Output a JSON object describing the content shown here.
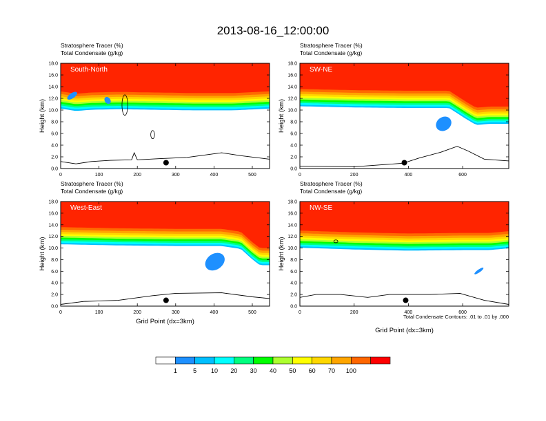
{
  "chart_data": {
    "type": "heatmap",
    "title": "2013-08-16_12:00:00",
    "panel_header": {
      "line1_name": "Stratosphere Tracer",
      "line1_unit": "(%)",
      "line2_name": "Total Condensate",
      "line2_unit": "(g/kg)"
    },
    "ylabel": "Height (km)",
    "xlabel": "Grid Point (dx=3km)",
    "yticks": [
      "0.0",
      "2.0",
      "4.0",
      "6.0",
      "8.0",
      "10.0",
      "12.0",
      "14.0",
      "16.0",
      "18.0"
    ],
    "ylim": [
      0,
      18
    ],
    "panels": [
      {
        "name": "South-North",
        "xlim": [
          0,
          545
        ],
        "xticks": [
          "0",
          "100",
          "200",
          "300",
          "400",
          "500"
        ],
        "tropopause_km": [
          [
            0,
            13.2
          ],
          [
            40,
            12.8
          ],
          [
            80,
            13.0
          ],
          [
            150,
            13.1
          ],
          [
            250,
            13.0
          ],
          [
            350,
            12.9
          ],
          [
            450,
            12.9
          ],
          [
            545,
            13.2
          ]
        ],
        "condensate_blobs": [
          {
            "x": [
              15,
              45
            ],
            "y": [
              12.0,
              12.9
            ]
          },
          {
            "x": [
              115,
              130
            ],
            "y": [
              11.0,
              12.3
            ]
          }
        ],
        "contour_loops": [
          {
            "x": [
              160,
              175
            ],
            "y": [
              9.1,
              12.6
            ]
          },
          {
            "x": [
              235,
              245
            ],
            "y": [
              5.1,
              6.5
            ]
          }
        ],
        "terrain_km": [
          [
            0,
            1.2
          ],
          [
            40,
            0.8
          ],
          [
            80,
            1.2
          ],
          [
            130,
            1.4
          ],
          [
            185,
            1.5
          ],
          [
            192,
            2.7
          ],
          [
            200,
            1.5
          ],
          [
            260,
            1.7
          ],
          [
            330,
            1.9
          ],
          [
            420,
            2.7
          ],
          [
            470,
            2.2
          ],
          [
            545,
            1.6
          ]
        ],
        "marker": {
          "x": 275,
          "y": 1.0
        }
      },
      {
        "name": "SW-NE",
        "xlim": [
          0,
          770
        ],
        "xticks": [
          "0",
          "200",
          "400",
          "600"
        ],
        "tropopause_km": [
          [
            0,
            13.6
          ],
          [
            200,
            13.4
          ],
          [
            400,
            13.3
          ],
          [
            550,
            13.3
          ],
          [
            610,
            11.5
          ],
          [
            650,
            10.4
          ],
          [
            700,
            10.6
          ],
          [
            770,
            10.6
          ]
        ],
        "condensate_blobs": [
          {
            "x": [
              500,
              560
            ],
            "y": [
              6.5,
              8.8
            ]
          }
        ],
        "contour_loops": [],
        "terrain_km": [
          [
            0,
            0.4
          ],
          [
            200,
            0.3
          ],
          [
            380,
            0.9
          ],
          [
            440,
            1.8
          ],
          [
            520,
            2.8
          ],
          [
            580,
            3.8
          ],
          [
            620,
            3.0
          ],
          [
            680,
            1.6
          ],
          [
            770,
            1.3
          ]
        ],
        "marker": {
          "x": 385,
          "y": 1.0
        }
      },
      {
        "name": "West-East",
        "xlim": [
          0,
          545
        ],
        "xticks": [
          "0",
          "100",
          "200",
          "300",
          "400",
          "500"
        ],
        "tropopause_km": [
          [
            0,
            13.6
          ],
          [
            150,
            13.4
          ],
          [
            300,
            13.3
          ],
          [
            420,
            13.3
          ],
          [
            470,
            12.8
          ],
          [
            500,
            11.0
          ],
          [
            520,
            10.0
          ],
          [
            545,
            10.0
          ]
        ],
        "condensate_blobs": [
          {
            "x": [
              375,
              430
            ],
            "y": [
              6.3,
              9.0
            ]
          }
        ],
        "contour_loops": [],
        "terrain_km": [
          [
            0,
            0.3
          ],
          [
            60,
            0.8
          ],
          [
            150,
            1.0
          ],
          [
            240,
            1.8
          ],
          [
            300,
            2.2
          ],
          [
            420,
            2.3
          ],
          [
            500,
            1.6
          ],
          [
            545,
            1.3
          ]
        ],
        "marker": {
          "x": 275,
          "y": 1.0
        }
      },
      {
        "name": "NW-SE",
        "xlim": [
          0,
          770
        ],
        "xticks": [
          "0",
          "200",
          "400",
          "600"
        ],
        "tropopause_km": [
          [
            0,
            13.0
          ],
          [
            200,
            12.7
          ],
          [
            400,
            12.5
          ],
          [
            600,
            12.6
          ],
          [
            700,
            12.6
          ],
          [
            770,
            12.9
          ]
        ],
        "condensate_blobs": [
          {
            "x": [
              640,
              680
            ],
            "y": [
              5.8,
              6.3
            ]
          }
        ],
        "contour_loops": [
          {
            "x": [
              125,
              140
            ],
            "y": [
              10.9,
              11.4
            ]
          }
        ],
        "terrain_km": [
          [
            0,
            1.5
          ],
          [
            60,
            2.0
          ],
          [
            150,
            2.0
          ],
          [
            250,
            1.5
          ],
          [
            330,
            2.0
          ],
          [
            480,
            2.0
          ],
          [
            590,
            2.2
          ],
          [
            680,
            1.0
          ],
          [
            770,
            0.3
          ]
        ],
        "marker": {
          "x": 390,
          "y": 1.0
        }
      }
    ],
    "contour_note": "Total Condensate Contours: .01 to .01 by .000",
    "colorbar": {
      "labels": [
        "1",
        "5",
        "10",
        "20",
        "30",
        "40",
        "50",
        "60",
        "70",
        "100"
      ],
      "colors": [
        "#ffffff",
        "#1e90ff",
        "#00bfff",
        "#00ffff",
        "#00ff7f",
        "#00ff00",
        "#adff2f",
        "#ffff00",
        "#ffd700",
        "#ffa500",
        "#ff6600",
        "#ff0000"
      ]
    }
  }
}
